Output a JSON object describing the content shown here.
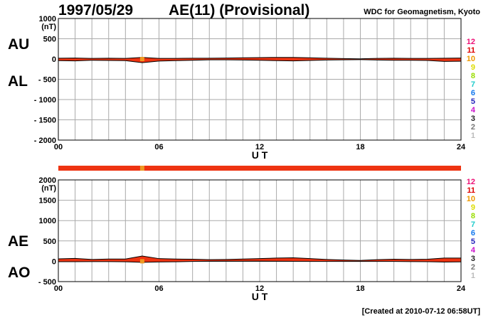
{
  "header": {
    "date": "1997/05/29",
    "title": "AE(11) (Provisional)",
    "source": "WDC for Geomagnetism, Kyoto"
  },
  "footer": {
    "created": "[Created at 2010-07-12 06:58UT]"
  },
  "colors": {
    "fill": "#ee3311",
    "grid": "#aaaaaa",
    "axis": "#000000",
    "highlight": "#ee9922"
  },
  "station_legend": {
    "labels": [
      "12",
      "11",
      "10",
      "9",
      "8",
      "7",
      "6",
      "5",
      "4",
      "3",
      "2",
      "1"
    ],
    "colors": [
      "#ee1177",
      "#dd0000",
      "#ee9900",
      "#dddd00",
      "#99dd00",
      "#22cccc",
      "#1177ee",
      "#2222bb",
      "#cc11cc",
      "#222222",
      "#777777",
      "#bbbbbb"
    ]
  },
  "chart_data": [
    {
      "type": "area",
      "panel": "AU/AL",
      "labels_upper": "AU",
      "labels_lower": "AL",
      "unit": "(nT)",
      "xlabel": "U T",
      "x_ticks": [
        "00",
        "06",
        "12",
        "18",
        "24"
      ],
      "x_range": [
        0,
        24
      ],
      "ylim": [
        -2000,
        1000
      ],
      "y_ticks": [
        1000,
        500,
        0,
        -500,
        -1000,
        -1500,
        -2000
      ],
      "y_tick_labels": [
        "1000",
        "500",
        "0",
        "- 500",
        "- 1000",
        "- 1500",
        "- 2000"
      ],
      "grid": true,
      "x": [
        0,
        1,
        2,
        3,
        4,
        5,
        6,
        7,
        8,
        9,
        10,
        11,
        12,
        13,
        14,
        15,
        16,
        17,
        18,
        19,
        20,
        21,
        22,
        23,
        24
      ],
      "series": [
        {
          "name": "AU",
          "values": [
            20,
            25,
            15,
            20,
            15,
            40,
            15,
            15,
            20,
            20,
            25,
            30,
            35,
            40,
            40,
            30,
            20,
            10,
            5,
            15,
            20,
            15,
            15,
            20,
            25
          ]
        },
        {
          "name": "AL",
          "values": [
            -40,
            -45,
            -30,
            -35,
            -40,
            -90,
            -50,
            -40,
            -30,
            -20,
            -20,
            -25,
            -30,
            -40,
            -45,
            -35,
            -25,
            -20,
            -15,
            -25,
            -30,
            -30,
            -35,
            -60,
            -55
          ]
        }
      ]
    },
    {
      "type": "area",
      "panel": "AE/AO",
      "labels_upper": "AE",
      "labels_lower": "AO",
      "unit": "(nT)",
      "xlabel": "U T",
      "x_ticks": [
        "00",
        "06",
        "12",
        "18",
        "24"
      ],
      "x_range": [
        0,
        24
      ],
      "ylim": [
        -500,
        2000
      ],
      "y_ticks": [
        2000,
        1500,
        1000,
        500,
        0,
        -500
      ],
      "y_tick_labels": [
        "2000",
        "1500",
        "1000",
        "500",
        "0",
        "- 500"
      ],
      "grid": true,
      "x": [
        0,
        1,
        2,
        3,
        4,
        5,
        6,
        7,
        8,
        9,
        10,
        11,
        12,
        13,
        14,
        15,
        16,
        17,
        18,
        19,
        20,
        21,
        22,
        23,
        24
      ],
      "series": [
        {
          "name": "AE",
          "values": [
            60,
            70,
            45,
            55,
            55,
            130,
            65,
            55,
            50,
            40,
            45,
            55,
            65,
            80,
            85,
            65,
            45,
            30,
            20,
            40,
            50,
            45,
            50,
            80,
            80
          ]
        },
        {
          "name": "AO",
          "values": [
            -10,
            -10,
            -8,
            -8,
            -12,
            -25,
            -18,
            -12,
            -5,
            0,
            2,
            3,
            3,
            0,
            -2,
            -3,
            -3,
            -5,
            -5,
            -5,
            -5,
            -8,
            -10,
            -20,
            -15
          ]
        }
      ]
    }
  ]
}
